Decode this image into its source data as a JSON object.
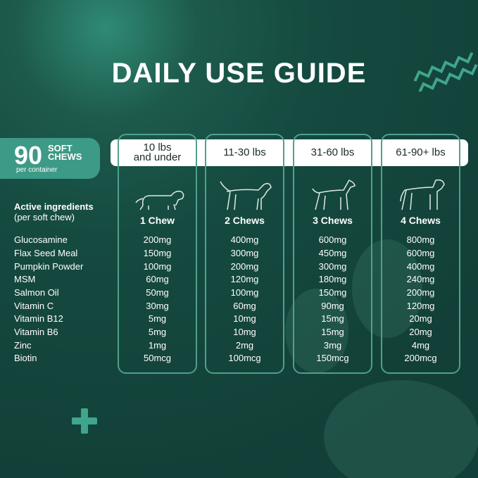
{
  "title": "DAILY USE GUIDE",
  "badge": {
    "count": "90",
    "line1": "SOFT",
    "line2": "CHEWS",
    "sub": "per container"
  },
  "active_label": "Active ingredients",
  "active_sub": "(per soft chew)",
  "ingredients": [
    "Glucosamine",
    "Flax Seed Meal",
    "Pumpkin Powder",
    "MSM",
    "Salmon Oil",
    "Vitamin C",
    "Vitamin B12",
    "Vitamin B6",
    "Zinc",
    "Biotin"
  ],
  "columns": [
    {
      "head1": "10 lbs",
      "head2": "and under",
      "dose": "1 Chew",
      "icon": "dachshund-icon",
      "values": [
        "200mg",
        "150mg",
        "100mg",
        "60mg",
        "50mg",
        "30mg",
        "5mg",
        "5mg",
        "1mg",
        "50mcg"
      ]
    },
    {
      "head1": "11-30 lbs",
      "head2": "",
      "dose": "2 Chews",
      "icon": "medium-dog-icon",
      "values": [
        "400mg",
        "300mg",
        "200mg",
        "120mg",
        "100mg",
        "60mg",
        "10mg",
        "10mg",
        "2mg",
        "100mcg"
      ]
    },
    {
      "head1": "31-60 lbs",
      "head2": "",
      "dose": "3 Chews",
      "icon": "doberman-icon",
      "values": [
        "600mg",
        "450mg",
        "300mg",
        "180mg",
        "150mg",
        "90mg",
        "15mg",
        "15mg",
        "3mg",
        "150mcg"
      ]
    },
    {
      "head1": "61-90+ lbs",
      "head2": "",
      "dose": "4 Chews",
      "icon": "great-dane-icon",
      "values": [
        "800mg",
        "600mg",
        "400mg",
        "240mg",
        "200mg",
        "120mg",
        "20mg",
        "20mg",
        "4mg",
        "200mcg"
      ]
    }
  ],
  "colors": {
    "background": "#154a40",
    "accent": "#3d9a86",
    "border": "#4fa08c"
  }
}
